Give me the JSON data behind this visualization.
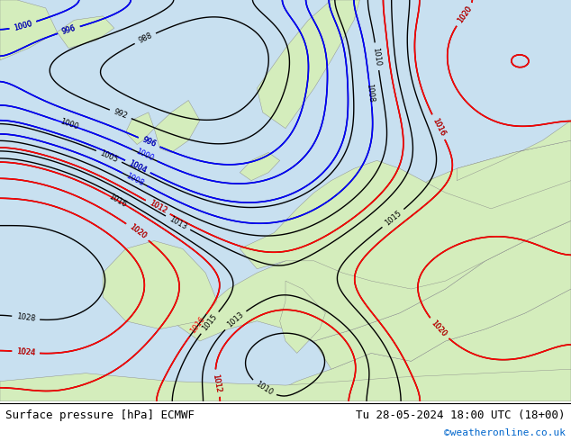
{
  "title_left": "Surface pressure [hPa] ECMWF",
  "title_right": "Tu 28-05-2024 18:00 UTC (18+00)",
  "copyright": "©weatheronline.co.uk",
  "bg_color": "#d4edbc",
  "land_color": "#d4edbc",
  "sea_color": "#c8e0f0",
  "fig_width": 6.34,
  "fig_height": 4.9,
  "dpi": 100
}
